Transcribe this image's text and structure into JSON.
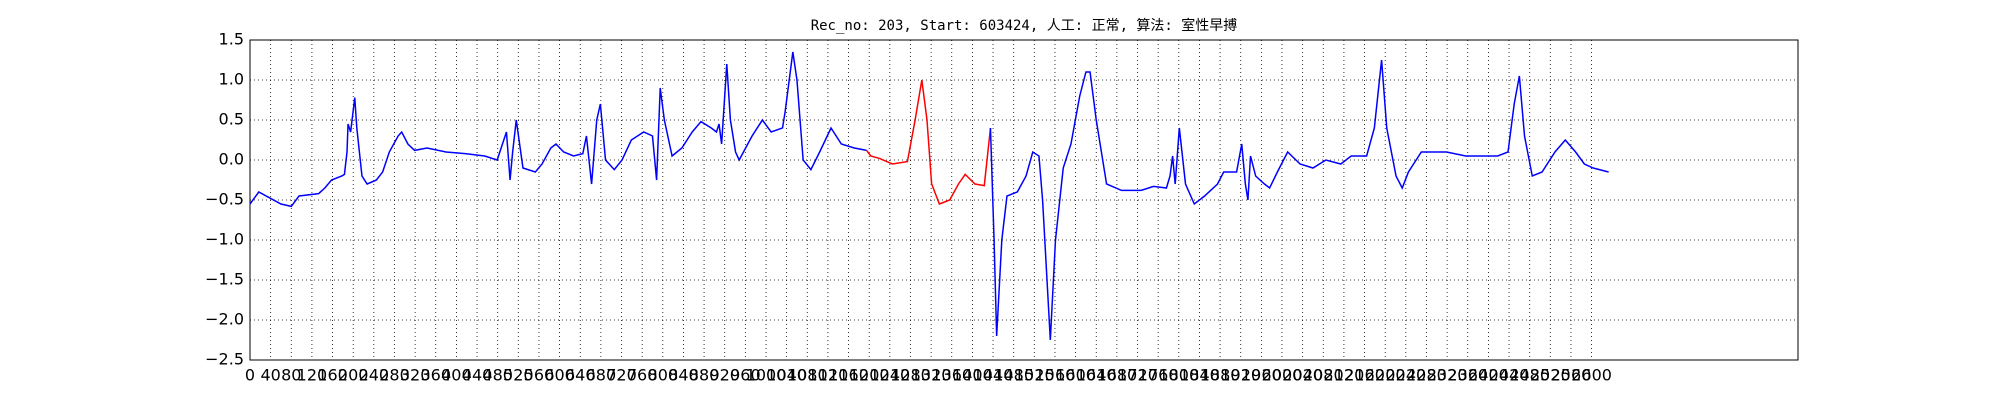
{
  "chart_data": {
    "type": "line",
    "title": "Rec_no: 203, Start: 603424, 人工: 正常, 算法: 室性早搏",
    "xlim": [
      0,
      3000
    ],
    "xticks": [
      0,
      40,
      80,
      120,
      160,
      200,
      240,
      280,
      320,
      360,
      400,
      440,
      480,
      520,
      560,
      600,
      640,
      680,
      720,
      760,
      800,
      840,
      880,
      920,
      960,
      1000,
      1040,
      1080,
      1120,
      1160,
      1200,
      1240,
      1280,
      1320,
      1360,
      1400,
      1440,
      1480,
      1520,
      1560,
      1600,
      1640,
      1680,
      1720,
      1760,
      1800,
      1840,
      1880,
      1920,
      1960,
      2000,
      2040,
      2080,
      2120,
      2160,
      2200,
      2240,
      2280,
      2320,
      2360,
      2400,
      2440,
      2480,
      2520,
      2560,
      2600
    ],
    "ylim": [
      -2.5,
      1.5
    ],
    "yticks": [
      {
        "value": -2.5,
        "label": "−2.5"
      },
      {
        "value": -2,
        "label": "−2.0"
      },
      {
        "value": -1.5,
        "label": "−1.5"
      },
      {
        "value": -1,
        "label": "−1.0"
      },
      {
        "value": -0.5,
        "label": "−0.5"
      },
      {
        "value": 0,
        "label": "0.0"
      },
      {
        "value": 0.5,
        "label": "0.5"
      },
      {
        "value": 1,
        "label": "1.0"
      },
      1.5
    ],
    "grid": true,
    "series": [
      {
        "color": "#0000ff",
        "x": [
          0,
          17,
          60,
          80,
          95,
          133,
          145,
          158,
          178,
          183,
          188,
          190,
          195,
          203,
          207,
          217,
          227,
          245,
          257,
          270,
          287,
          294,
          306,
          319,
          343,
          380,
          417,
          455,
          479,
          497,
          504,
          509,
          516,
          529,
          553,
          566,
          583,
          593,
          608,
          627,
          645,
          652,
          662,
          672,
          679,
          689,
          706,
          721,
          739,
          763,
          780,
          788,
          795,
          803,
          818,
          837,
          857,
          874,
          894,
          904,
          909,
          914,
          924,
          931,
          941,
          948,
          973,
          993,
          1010,
          1032,
          1037,
          1052,
          1060,
          1072,
          1087,
          1104,
          1126,
          1146,
          1171,
          1195
        ],
        "values": [
          -0.55,
          -0.4,
          -0.55,
          -0.58,
          -0.45,
          -0.42,
          -0.35,
          -0.25,
          -0.2,
          -0.18,
          0.1,
          0.45,
          0.35,
          0.78,
          0.4,
          -0.2,
          -0.3,
          -0.25,
          -0.15,
          0.1,
          0.3,
          0.35,
          0.2,
          0.12,
          0.15,
          0.1,
          0.08,
          0.05,
          0.0,
          0.35,
          -0.25,
          0.1,
          0.5,
          -0.1,
          -0.15,
          -0.05,
          0.15,
          0.2,
          0.1,
          0.05,
          0.08,
          0.3,
          -0.3,
          0.5,
          0.7,
          0.0,
          -0.12,
          0.0,
          0.25,
          0.35,
          0.3,
          -0.25,
          0.9,
          0.5,
          0.05,
          0.15,
          0.35,
          0.48,
          0.4,
          0.35,
          0.45,
          0.2,
          1.2,
          0.5,
          0.1,
          0.0,
          0.3,
          0.5,
          0.35,
          0.4,
          0.6,
          1.35,
          1.0,
          0.0,
          -0.12,
          0.1,
          0.4,
          0.2,
          0.15,
          0.12
        ]
      },
      {
        "color": "#ff0000",
        "x": [
          1195,
          1203,
          1220,
          1245,
          1274,
          1289,
          1302,
          1312,
          1321,
          1336,
          1356,
          1373,
          1386,
          1405,
          1423,
          1435
        ],
        "values": [
          0.12,
          0.05,
          0.02,
          -0.05,
          -0.02,
          0.5,
          1.0,
          0.5,
          -0.3,
          -0.55,
          -0.5,
          -0.3,
          -0.18,
          -0.3,
          -0.32,
          0.4
        ]
      },
      {
        "color": "#0000ff",
        "x": [
          1435,
          1442,
          1447,
          1457,
          1467,
          1487,
          1504,
          1517,
          1529,
          1536,
          1551,
          1561,
          1576,
          1591,
          1608,
          1620,
          1628,
          1640,
          1660,
          1689,
          1727,
          1751,
          1776,
          1783,
          1788,
          1793,
          1801,
          1813,
          1830,
          1850,
          1875,
          1887,
          1912,
          1922,
          1929,
          1934,
          1939,
          1949,
          1966,
          1976,
          1991,
          2011,
          2035,
          2060,
          2085,
          2114,
          2134,
          2164,
          2179,
          2193,
          2203,
          2221,
          2233,
          2245,
          2270,
          2319,
          2356,
          2418,
          2438,
          2450,
          2460,
          2470,
          2485,
          2504,
          2529,
          2549,
          2569,
          2586,
          2603,
          2633
        ],
        "values": [
          0.4,
          -1.0,
          -2.2,
          -1.0,
          -0.45,
          -0.4,
          -0.2,
          0.1,
          0.05,
          -0.5,
          -2.25,
          -1.0,
          -0.1,
          0.2,
          0.8,
          1.1,
          1.1,
          0.5,
          -0.3,
          -0.38,
          -0.38,
          -0.33,
          -0.35,
          -0.2,
          0.05,
          -0.3,
          0.4,
          -0.3,
          -0.55,
          -0.45,
          -0.3,
          -0.15,
          -0.15,
          0.2,
          -0.3,
          -0.5,
          0.05,
          -0.2,
          -0.3,
          -0.35,
          -0.15,
          0.1,
          -0.05,
          -0.1,
          0.0,
          -0.05,
          0.05,
          0.05,
          0.4,
          1.25,
          0.4,
          -0.2,
          -0.35,
          -0.15,
          0.1,
          0.1,
          0.05,
          0.05,
          0.1,
          0.7,
          1.05,
          0.3,
          -0.2,
          -0.15,
          0.1,
          0.25,
          0.1,
          -0.05,
          -0.1,
          -0.15
        ]
      }
    ]
  }
}
